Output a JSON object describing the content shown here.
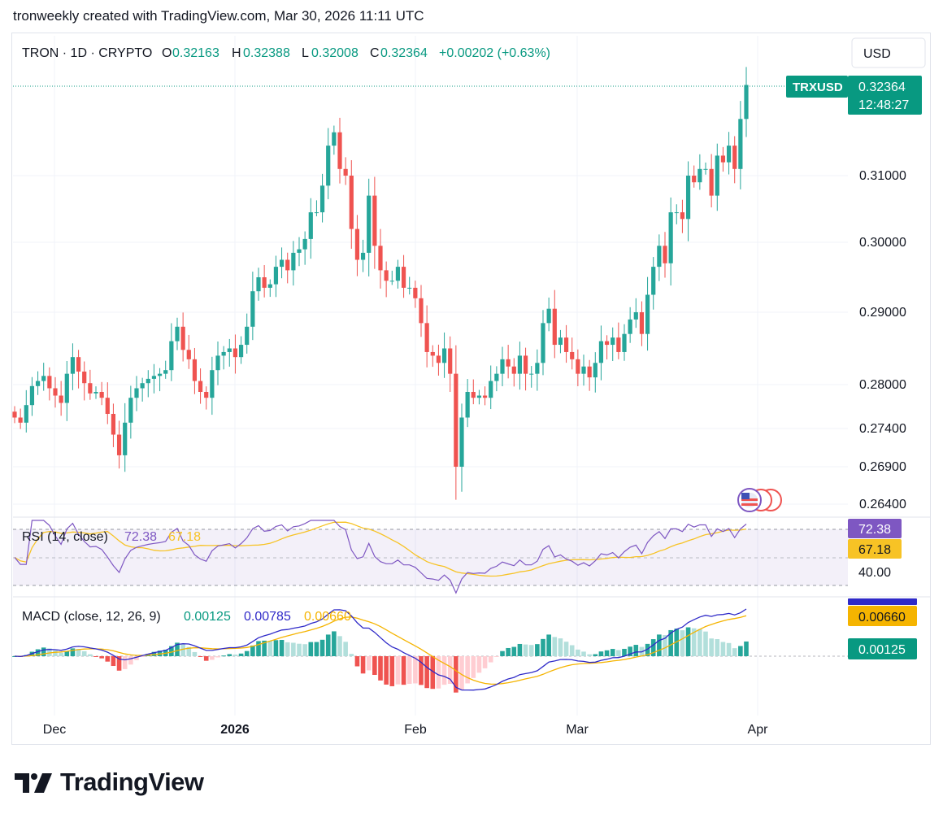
{
  "header": {
    "attribution": "tronweekly created with TradingView.com, Mar 30, 2026 11:11 UTC"
  },
  "legend": {
    "symbol": "TRON · 1D · CRYPTO",
    "o_label": "O",
    "o_value": "0.32163",
    "h_label": "H",
    "h_value": "0.32388",
    "l_label": "L",
    "l_value": "0.32008",
    "c_label": "C",
    "c_value": "0.32364",
    "change": "+0.00202 (+0.63%)"
  },
  "currency_button": "USD",
  "price_tag": {
    "ticker": "TRXUSD",
    "price": "0.32364",
    "countdown": "12:48:27"
  },
  "price_axis": [
    "0.31000",
    "0.30000",
    "0.29000",
    "0.28000",
    "0.27400",
    "0.26900",
    "0.26400"
  ],
  "time_axis": [
    "Dec",
    "2026",
    "Feb",
    "Mar",
    "Apr"
  ],
  "rsi": {
    "label": "RSI (14, close)",
    "value": "72.38",
    "ma_value": "67.18",
    "level": "40.00"
  },
  "macd": {
    "label": "MACD (close, 12, 26, 9)",
    "hist_value": "0.00125",
    "macd_value": "0.00785",
    "signal_value": "0.00660"
  },
  "brand": {
    "name": "TradingView"
  },
  "colors": {
    "up": "#26a69a",
    "down": "#ef5350",
    "rsi_line": "#7e57c2",
    "rsi_ma": "#f7c325",
    "macd_line": "#2f2ac8",
    "signal_line": "#f5b400",
    "tag_green": "#089981"
  },
  "chart_data": {
    "type": "candlestick",
    "title": "TRON · 1D · CRYPTO",
    "xlabel": "",
    "ylabel": "",
    "price_range": [
      0.2615,
      0.3285
    ],
    "approx_close_series": [
      0.2755,
      0.2748,
      0.2772,
      0.2798,
      0.2805,
      0.2812,
      0.2795,
      0.2785,
      0.2775,
      0.2815,
      0.2838,
      0.2818,
      0.2802,
      0.2788,
      0.279,
      0.2782,
      0.276,
      0.2732,
      0.2705,
      0.2748,
      0.2782,
      0.2795,
      0.2802,
      0.2808,
      0.2812,
      0.2815,
      0.282,
      0.286,
      0.288,
      0.2848,
      0.2835,
      0.2805,
      0.279,
      0.2782,
      0.282,
      0.284,
      0.2845,
      0.285,
      0.2838,
      0.2855,
      0.288,
      0.293,
      0.295,
      0.2935,
      0.294,
      0.2965,
      0.2975,
      0.296,
      0.2985,
      0.299,
      0.3005,
      0.3045,
      0.3045,
      0.3085,
      0.3145,
      0.3165,
      0.311,
      0.31,
      0.302,
      0.2975,
      0.2985,
      0.307,
      0.2995,
      0.296,
      0.2945,
      0.2945,
      0.2965,
      0.2935,
      0.2935,
      0.292,
      0.2885,
      0.2845,
      0.284,
      0.283,
      0.285,
      0.2815,
      0.269,
      0.2755,
      0.279,
      0.2782,
      0.2785,
      0.2782,
      0.2805,
      0.2815,
      0.2835,
      0.2825,
      0.2815,
      0.284,
      0.2815,
      0.2815,
      0.283,
      0.2885,
      0.2905,
      0.2855,
      0.2865,
      0.2845,
      0.2835,
      0.2815,
      0.2825,
      0.281,
      0.283,
      0.286,
      0.2855,
      0.2865,
      0.2845,
      0.287,
      0.289,
      0.29,
      0.287,
      0.2925,
      0.2965,
      0.2995,
      0.297,
      0.3045,
      0.3045,
      0.3035,
      0.31,
      0.309,
      0.311,
      0.311,
      0.307,
      0.313,
      0.312,
      0.3145,
      0.311,
      0.3185,
      0.3236
    ],
    "rsi": {
      "last": 72.38,
      "ma_last": 67.18,
      "level": 40,
      "band": [
        30,
        70
      ]
    },
    "macd": {
      "macd": 0.00785,
      "signal": 0.0066,
      "histogram": 0.00125
    }
  }
}
